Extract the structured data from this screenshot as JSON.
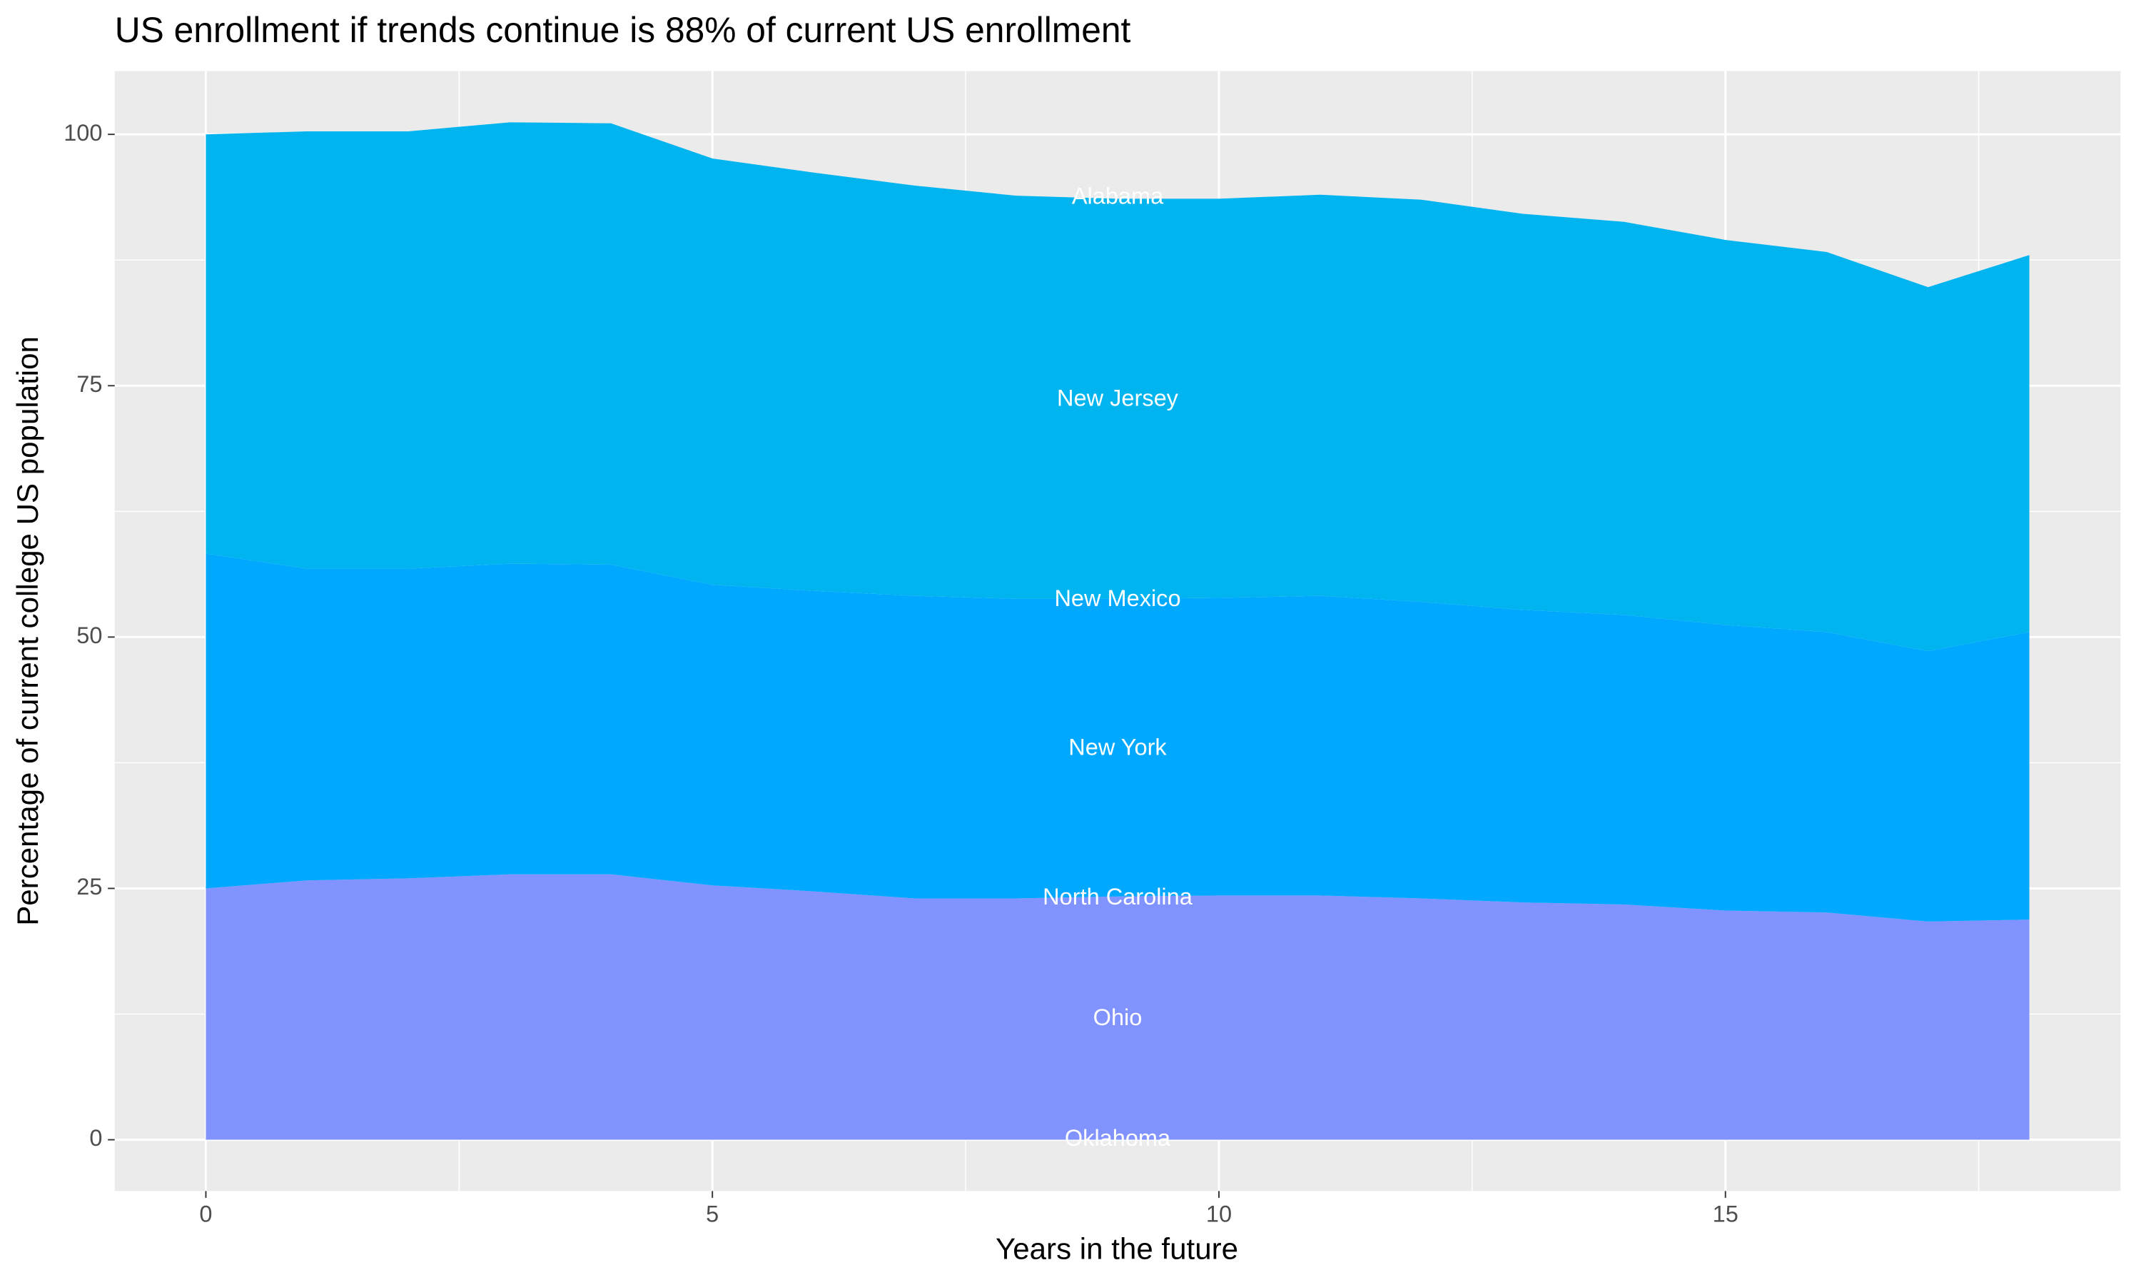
{
  "chart_data": {
    "type": "stacked_area",
    "title": "US enrollment if trends continue is 88% of current US enrollment",
    "x_label": "Years in the future",
    "y_label": "Percentage of current college US population",
    "x": [
      0,
      1,
      2,
      3,
      4,
      5,
      6,
      7,
      8,
      9,
      10,
      11,
      12,
      13,
      14,
      15,
      16,
      17,
      18
    ],
    "series": [
      {
        "color": "#8193ff",
        "values": [
          25.0,
          25.8,
          26.0,
          26.4,
          26.4,
          25.3,
          24.7,
          24.0,
          24.0,
          24.2,
          24.3,
          24.3,
          24.0,
          23.6,
          23.4,
          22.8,
          22.6,
          21.7,
          21.9
        ]
      },
      {
        "color": "#00a9ff",
        "values": [
          33.3,
          31.0,
          30.8,
          30.9,
          30.8,
          29.9,
          29.9,
          30.1,
          29.8,
          29.6,
          29.6,
          29.8,
          29.5,
          29.1,
          28.8,
          28.4,
          27.9,
          26.9,
          28.6
        ]
      },
      {
        "color": "#00b4f0",
        "values": [
          41.7,
          43.5,
          43.5,
          43.9,
          43.9,
          42.4,
          41.6,
          40.8,
          40.1,
          39.8,
          39.7,
          39.9,
          40.0,
          39.4,
          39.1,
          38.3,
          37.8,
          36.2,
          37.5
        ]
      }
    ],
    "annotations": [
      {
        "text": "Alabama",
        "x": 9,
        "y": 93.7
      },
      {
        "text": "New Jersey",
        "x": 9,
        "y": 73.6
      },
      {
        "text": "New Mexico",
        "x": 9,
        "y": 53.7
      },
      {
        "text": "New York",
        "x": 9,
        "y": 38.9
      },
      {
        "text": "North Carolina",
        "x": 9,
        "y": 24.0
      },
      {
        "text": "Ohio",
        "x": 9,
        "y": 12.0
      },
      {
        "text": "Oklahoma",
        "x": 9,
        "y": 0
      }
    ],
    "xlim": [
      -0.9,
      18.9
    ],
    "ylim": [
      -5.1,
      106.3
    ],
    "xticks": [
      0,
      5,
      10,
      15
    ],
    "yticks": [
      0,
      25,
      50,
      75,
      100
    ],
    "minor_xticks": [
      2.5,
      7.5,
      12.5,
      17.5
    ],
    "minor_yticks": [
      12.5,
      37.5,
      62.5,
      87.5
    ],
    "grid": true
  }
}
